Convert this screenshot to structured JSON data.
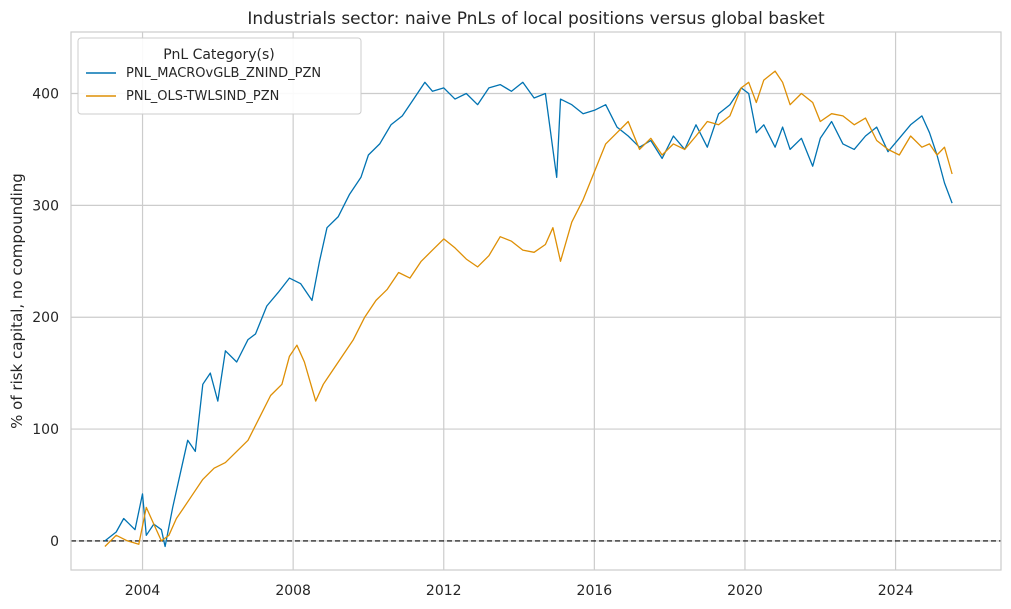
{
  "chart_data": {
    "type": "line",
    "title": "Industrials sector: naive PnLs of local positions versus global basket",
    "xlabel": "",
    "ylabel": "% of risk capital, no compounding",
    "xlim": [
      2002.1,
      2026.8
    ],
    "ylim": [
      -26,
      455
    ],
    "x_ticks": [
      2004,
      2008,
      2012,
      2016,
      2020,
      2024
    ],
    "y_ticks": [
      0,
      100,
      200,
      300,
      400
    ],
    "grid": true,
    "zero_line": {
      "y": 0,
      "style": "dashed",
      "color": "#000000"
    },
    "legend": {
      "title": "PnL Category(s)",
      "placement": "top-left"
    },
    "series": [
      {
        "name": "PNL_MACROvGLB_ZNIND_PZN",
        "color": "#0173b2",
        "x": [
          2003.0,
          2003.3,
          2003.5,
          2003.8,
          2004.0,
          2004.1,
          2004.3,
          2004.5,
          2004.6,
          2004.8,
          2005.0,
          2005.2,
          2005.4,
          2005.6,
          2005.8,
          2006.0,
          2006.2,
          2006.5,
          2006.8,
          2007.0,
          2007.3,
          2007.6,
          2007.9,
          2008.2,
          2008.5,
          2008.7,
          2008.9,
          2009.2,
          2009.5,
          2009.8,
          2010.0,
          2010.3,
          2010.6,
          2010.9,
          2011.2,
          2011.5,
          2011.7,
          2012.0,
          2012.3,
          2012.6,
          2012.9,
          2013.2,
          2013.5,
          2013.8,
          2014.1,
          2014.4,
          2014.7,
          2014.9,
          2015.0,
          2015.1,
          2015.4,
          2015.7,
          2016.0,
          2016.3,
          2016.6,
          2016.9,
          2017.2,
          2017.5,
          2017.8,
          2018.1,
          2018.4,
          2018.7,
          2019.0,
          2019.3,
          2019.6,
          2019.9,
          2020.1,
          2020.3,
          2020.5,
          2020.8,
          2021.0,
          2021.2,
          2021.5,
          2021.8,
          2022.0,
          2022.3,
          2022.6,
          2022.9,
          2023.2,
          2023.5,
          2023.8,
          2024.1,
          2024.4,
          2024.7,
          2024.9,
          2025.1,
          2025.3,
          2025.5
        ],
        "values": [
          0,
          8,
          20,
          10,
          42,
          5,
          15,
          10,
          -5,
          30,
          60,
          90,
          80,
          140,
          150,
          125,
          170,
          160,
          180,
          185,
          210,
          222,
          235,
          230,
          215,
          250,
          280,
          290,
          310,
          325,
          345,
          355,
          372,
          380,
          395,
          410,
          402,
          405,
          395,
          400,
          390,
          405,
          408,
          402,
          410,
          396,
          400,
          350,
          325,
          395,
          390,
          382,
          385,
          390,
          370,
          362,
          352,
          358,
          342,
          362,
          350,
          372,
          352,
          382,
          390,
          405,
          400,
          365,
          372,
          352,
          370,
          350,
          360,
          335,
          360,
          375,
          355,
          350,
          362,
          370,
          348,
          360,
          372,
          380,
          365,
          345,
          320,
          302
        ]
      },
      {
        "name": "PNL_OLS-TWLSIND_PZN",
        "color": "#de8f05",
        "x": [
          2003.0,
          2003.3,
          2003.6,
          2003.9,
          2004.1,
          2004.3,
          2004.5,
          2004.7,
          2004.9,
          2005.1,
          2005.3,
          2005.6,
          2005.9,
          2006.2,
          2006.5,
          2006.8,
          2007.1,
          2007.4,
          2007.7,
          2007.9,
          2008.1,
          2008.3,
          2008.6,
          2008.8,
          2009.0,
          2009.3,
          2009.6,
          2009.9,
          2010.2,
          2010.5,
          2010.8,
          2011.1,
          2011.4,
          2011.7,
          2012.0,
          2012.3,
          2012.6,
          2012.9,
          2013.2,
          2013.5,
          2013.8,
          2014.1,
          2014.4,
          2014.7,
          2014.9,
          2015.1,
          2015.4,
          2015.7,
          2016.0,
          2016.3,
          2016.6,
          2016.9,
          2017.2,
          2017.5,
          2017.8,
          2018.1,
          2018.4,
          2018.7,
          2019.0,
          2019.3,
          2019.6,
          2019.9,
          2020.1,
          2020.3,
          2020.5,
          2020.8,
          2021.0,
          2021.2,
          2021.5,
          2021.8,
          2022.0,
          2022.3,
          2022.6,
          2022.9,
          2023.2,
          2023.5,
          2023.8,
          2024.1,
          2024.4,
          2024.7,
          2024.9,
          2025.1,
          2025.3,
          2025.5
        ],
        "values": [
          -5,
          5,
          0,
          -3,
          30,
          15,
          0,
          5,
          20,
          30,
          40,
          55,
          65,
          70,
          80,
          90,
          110,
          130,
          140,
          165,
          175,
          160,
          125,
          140,
          150,
          165,
          180,
          200,
          215,
          225,
          240,
          235,
          250,
          260,
          270,
          262,
          252,
          245,
          255,
          272,
          268,
          260,
          258,
          265,
          280,
          250,
          285,
          305,
          330,
          355,
          365,
          375,
          350,
          360,
          345,
          355,
          350,
          362,
          375,
          372,
          380,
          405,
          410,
          392,
          412,
          420,
          410,
          390,
          400,
          392,
          375,
          382,
          380,
          372,
          378,
          358,
          350,
          345,
          362,
          352,
          355,
          345,
          352,
          328
        ]
      }
    ]
  }
}
